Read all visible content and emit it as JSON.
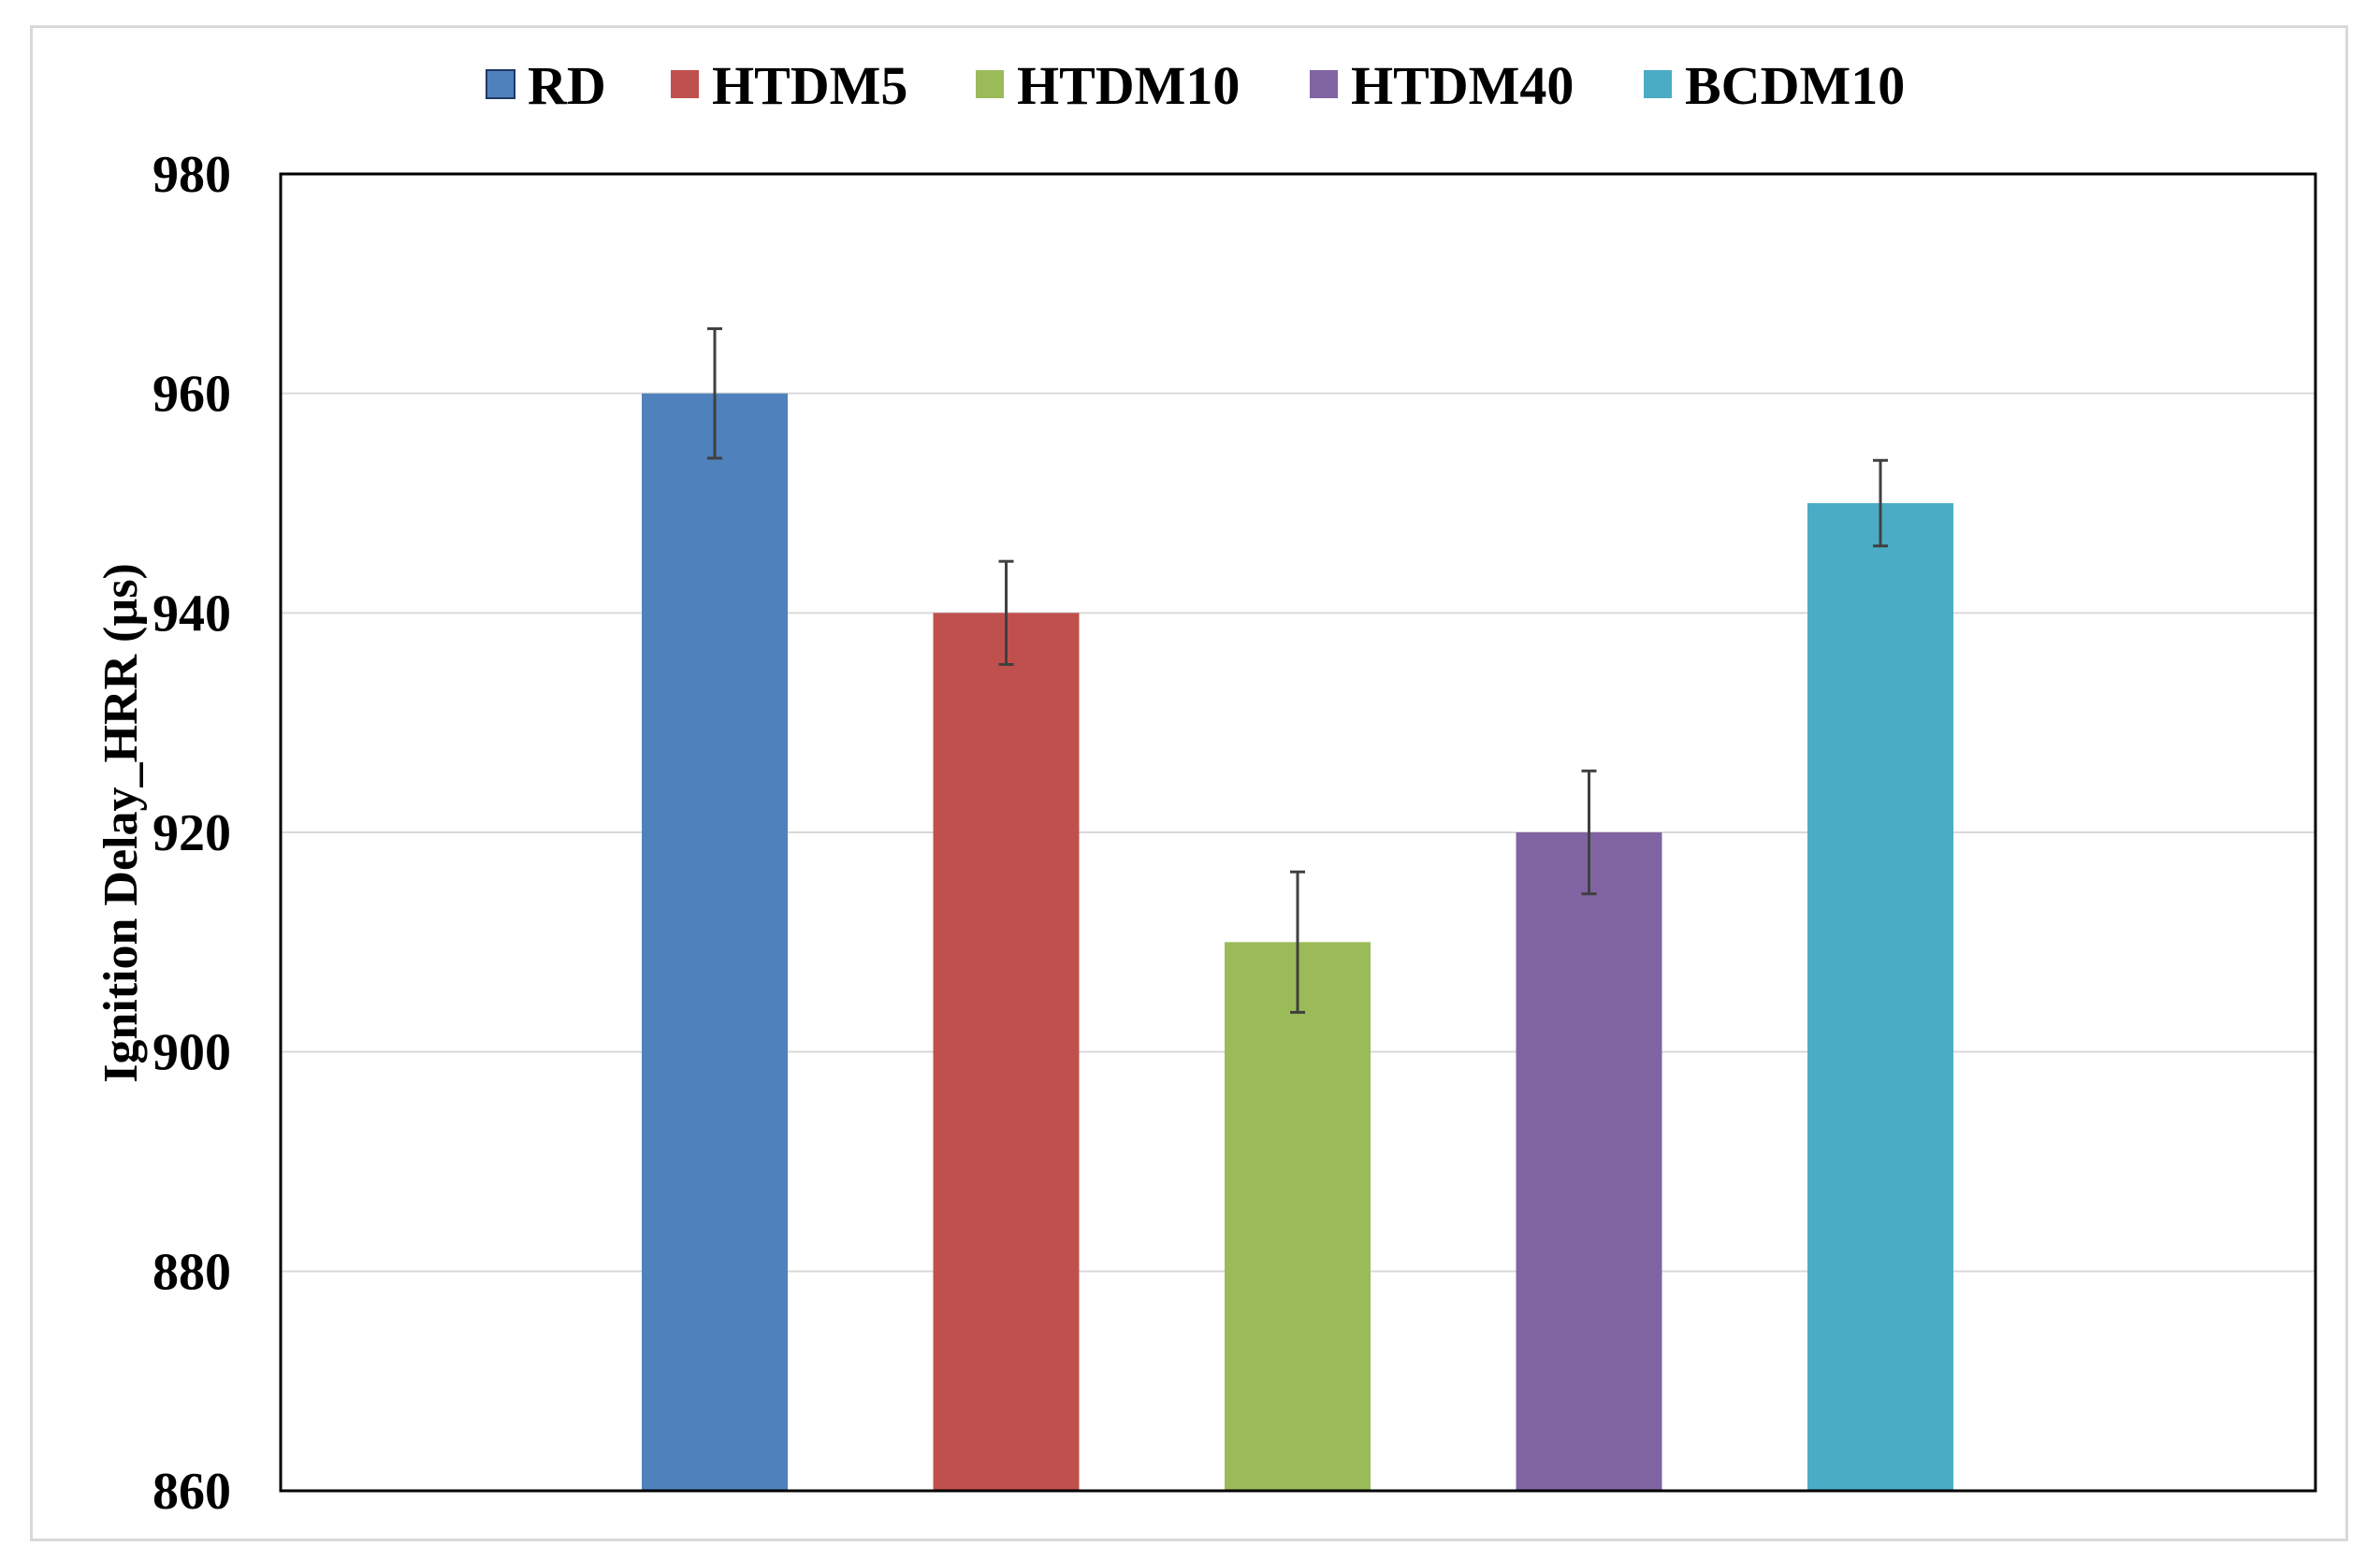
{
  "chart_data": {
    "type": "bar",
    "title": "",
    "xlabel": "",
    "ylabel": "Ignition Delay_HRR (µs)",
    "ylim": [
      860,
      980
    ],
    "yticks": [
      860,
      880,
      900,
      920,
      940,
      960,
      980
    ],
    "grid": true,
    "legend_position": "top",
    "series": [
      {
        "name": "RD",
        "value": 960,
        "error": 5.9,
        "color": "#4f81bd"
      },
      {
        "name": "HTDM5",
        "value": 940,
        "error": 4.7,
        "color": "#c0504d"
      },
      {
        "name": "HTDM10",
        "value": 910,
        "error": 6.4,
        "color": "#9bbb59"
      },
      {
        "name": "HTDM40",
        "value": 920,
        "error": 5.6,
        "color": "#8064a2"
      },
      {
        "name": "BCDM10",
        "value": 950,
        "error": 3.9,
        "color": "#4bacc6"
      }
    ]
  }
}
